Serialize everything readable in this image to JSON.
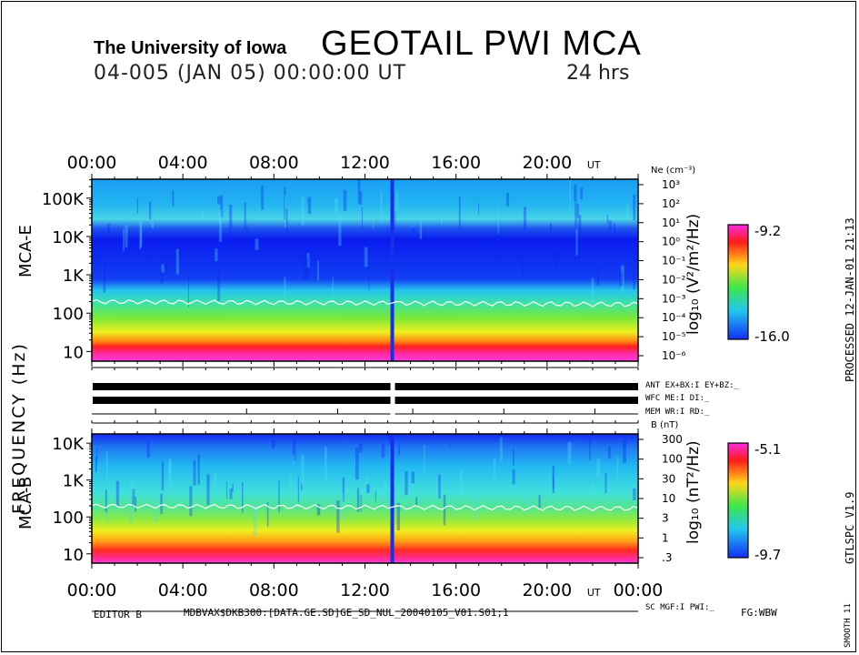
{
  "header": {
    "institution": "The University of Iowa",
    "title": "GEOTAIL  PWI  MCA",
    "datetime": "04-005 (JAN 05) 00:00:00 UT",
    "duration": "24 hrs"
  },
  "side": {
    "processed": "PROCESSED 12-JAN-01  21:13",
    "version": "GTLSPC   V1.9",
    "smooth": "SMOOTH 11",
    "freq_axis_label": "FREQUENCY (Hz)"
  },
  "footer": {
    "editor": "EDITOR B",
    "file": "MDBVAX$DKB300:[DATA.GE.SD]GE_SD_NUL_20040105_V01.S01;1",
    "fg": "FG:WBW",
    "sc_mgf": "SC MGF:I   PWI:_"
  },
  "status": {
    "ant": "ANT EX+BX:I  EY+BZ:_",
    "wfc": "WFC ME:I     DI:_",
    "mem": "MEM WR:I     RD:_"
  },
  "chart_data": [
    {
      "type": "heatmap",
      "panel": "MCA-E",
      "ylabel": "MCA-E",
      "x_ticks": [
        "00:00",
        "04:00",
        "08:00",
        "12:00",
        "16:00",
        "20:00"
      ],
      "x_unit": "UT",
      "xlim_hours": [
        0,
        24
      ],
      "y_scale": "log",
      "y_ticks": [
        "100K",
        "10K",
        "1K",
        "100",
        "10"
      ],
      "ylim_hz": [
        5.6,
        311000
      ],
      "right_axis_label": "Ne (cm⁻³)",
      "right_ticks": [
        "10³",
        "10²",
        "10¹",
        "10⁰",
        "10⁻¹",
        "10⁻²",
        "10⁻³",
        "10⁻⁴",
        "10⁻⁵",
        "10⁻⁶"
      ],
      "colorbar": {
        "label": "log₁₀ (V²/m²/Hz)",
        "max": "-9.2",
        "min": "-16.0"
      },
      "data_gap_hours": 13.2,
      "plasma_line_hz": 200
    },
    {
      "type": "heatmap",
      "panel": "MCA-B",
      "ylabel": "MCA-B",
      "x_ticks": [
        "00:00",
        "04:00",
        "08:00",
        "12:00",
        "16:00",
        "20:00",
        "00:00"
      ],
      "x_unit": "UT",
      "xlim_hours": [
        0,
        24
      ],
      "y_scale": "log",
      "y_ticks": [
        "10K",
        "1K",
        "100",
        "10"
      ],
      "ylim_hz": [
        5.6,
        17800
      ],
      "right_axis_label": "B (nT)",
      "right_ticks": [
        "300",
        "100",
        "30",
        "10",
        "3",
        "1",
        ".3"
      ],
      "colorbar": {
        "label": "log₁₀ (nT²/Hz)",
        "max": "-5.1",
        "min": "-9.7"
      },
      "data_gap_hours": 13.2,
      "plasma_line_hz": 200
    }
  ]
}
